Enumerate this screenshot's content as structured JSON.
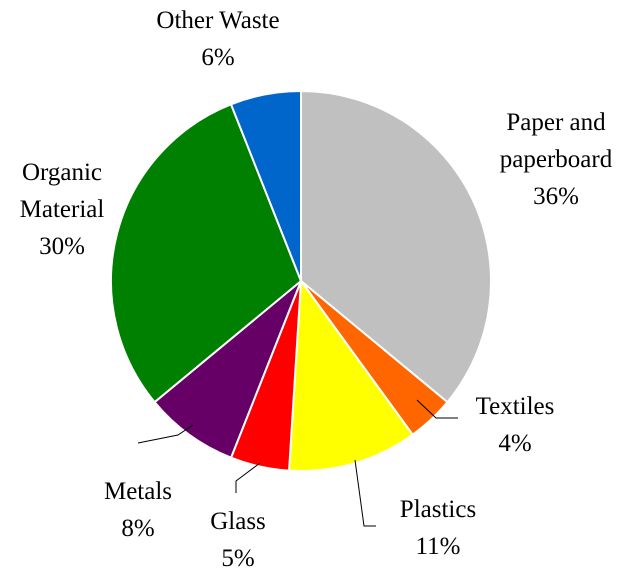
{
  "chart_data": {
    "type": "pie",
    "title": "",
    "slices": [
      {
        "label": [
          "Paper and",
          "paperboard"
        ],
        "pct_text": "36%",
        "value": 36,
        "color": "#c0c0c0"
      },
      {
        "label": [
          "Textiles"
        ],
        "pct_text": "4%",
        "value": 4,
        "color": "#ff6600"
      },
      {
        "label": [
          "Plastics"
        ],
        "pct_text": "11%",
        "value": 11,
        "color": "#ffff00"
      },
      {
        "label": [
          "Glass"
        ],
        "pct_text": "5%",
        "value": 5,
        "color": "#ff0000"
      },
      {
        "label": [
          "Metals"
        ],
        "pct_text": "8%",
        "value": 8,
        "color": "#660066"
      },
      {
        "label": [
          "Organic",
          "Material"
        ],
        "pct_text": "30%",
        "value": 30,
        "color": "#008000"
      },
      {
        "label": [
          "Other Waste"
        ],
        "pct_text": "6%",
        "value": 6,
        "color": "#0066cc"
      }
    ],
    "start_angle_deg": 0,
    "direction": "clockwise",
    "legend": "none",
    "data_labels": "outside"
  }
}
